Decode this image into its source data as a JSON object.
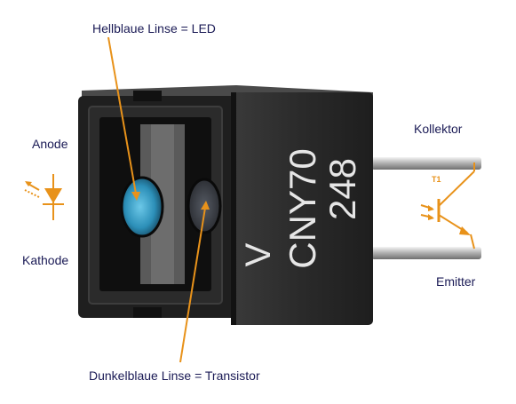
{
  "labels": {
    "led_lens": "Hellblaue Linse = LED",
    "anode": "Anode",
    "cathode": "Kathode",
    "collector": "Kollektor",
    "emitter": "Emitter",
    "transistor_lens": "Dunkelblaue Linse = Transistor"
  },
  "component_marking": {
    "logo": "V",
    "type": "CNY70",
    "code": "248"
  },
  "symbol_labels": {
    "transistor": "T1"
  },
  "colors": {
    "annotation": "#e8921a",
    "label_text": "#1a1a55",
    "body": "#2a2a2a",
    "led_lens": "#3aa0c8",
    "transistor_lens": "#3a3d44"
  }
}
